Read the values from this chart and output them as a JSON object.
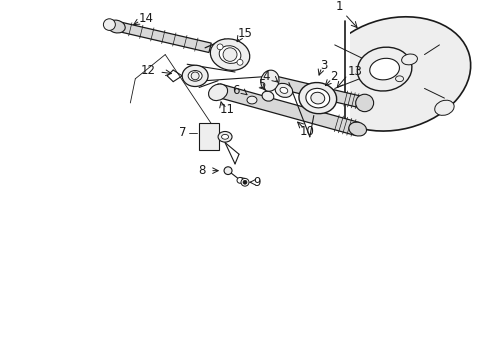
{
  "background_color": "#ffffff",
  "line_color": "#1a1a1a",
  "fig_width": 4.89,
  "fig_height": 3.6,
  "dpi": 100,
  "font_size": 8.5,
  "lw_main": 0.9,
  "lw_thin": 0.6,
  "gray_fill": "#d8d8d8",
  "light_fill": "#eeeeee"
}
